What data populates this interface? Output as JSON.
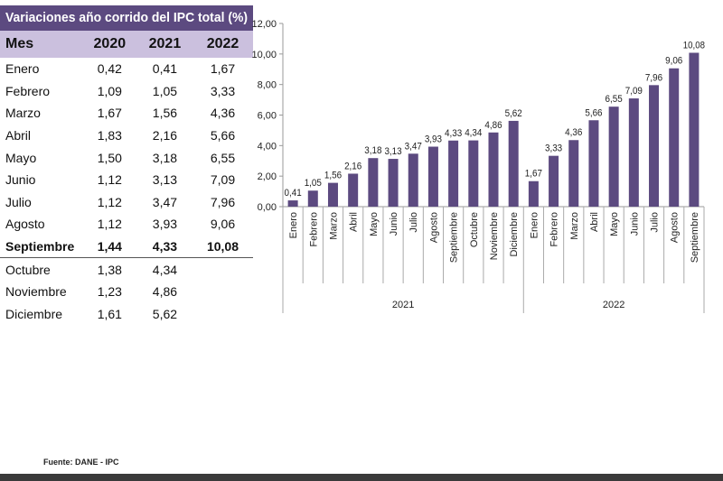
{
  "table": {
    "title": "Variaciones año corrido del IPC total (%)",
    "headers": [
      "Mes",
      "2020",
      "2021",
      "2022"
    ],
    "rows": [
      [
        "Enero",
        "0,42",
        "0,41",
        "1,67"
      ],
      [
        "Febrero",
        "1,09",
        "1,05",
        "3,33"
      ],
      [
        "Marzo",
        "1,67",
        "1,56",
        "4,36"
      ],
      [
        "Abril",
        "1,83",
        "2,16",
        "5,66"
      ],
      [
        "Mayo",
        "1,50",
        "3,18",
        "6,55"
      ],
      [
        "Junio",
        "1,12",
        "3,13",
        "7,09"
      ],
      [
        "Julio",
        "1,12",
        "3,47",
        "7,96"
      ],
      [
        "Agosto",
        "1,12",
        "3,93",
        "9,06"
      ],
      [
        "Septiembre",
        "1,44",
        "4,33",
        "10,08"
      ],
      [
        "Octubre",
        "1,38",
        "4,34",
        ""
      ],
      [
        "Noviembre",
        "1,23",
        "4,86",
        ""
      ],
      [
        "Diciembre",
        "1,61",
        "5,62",
        ""
      ]
    ],
    "highlight_row": "Septiembre",
    "colors": {
      "title_bg": "#5c4a80",
      "header_bg": "#cbc0de"
    }
  },
  "chart_data": {
    "type": "bar",
    "groups": [
      {
        "name": "2021",
        "categories": [
          "Enero",
          "Febrero",
          "Marzo",
          "Abril",
          "Mayo",
          "Junio",
          "Julio",
          "Agosto",
          "Septiembre",
          "Octubre",
          "Noviembre",
          "Diciembre"
        ],
        "values": [
          0.41,
          1.05,
          1.56,
          2.16,
          3.18,
          3.13,
          3.47,
          3.93,
          4.33,
          4.34,
          4.86,
          5.62
        ],
        "labels": [
          "0,41",
          "1,05",
          "1,56",
          "2,16",
          "3,18",
          "3,13",
          "3,47",
          "3,93",
          "4,33",
          "4,34",
          "4,86",
          "5,62"
        ]
      },
      {
        "name": "2022",
        "categories": [
          "Enero",
          "Febrero",
          "Marzo",
          "Abril",
          "Mayo",
          "Junio",
          "Julio",
          "Agosto",
          "Septiembre"
        ],
        "values": [
          1.67,
          3.33,
          4.36,
          5.66,
          6.55,
          7.09,
          7.96,
          9.06,
          10.08
        ],
        "labels": [
          "1,67",
          "3,33",
          "4,36",
          "5,66",
          "6,55",
          "7,09",
          "7,96",
          "9,06",
          "10,08"
        ]
      }
    ],
    "yticks": [
      "0,00",
      "2,00",
      "4,00",
      "6,00",
      "8,00",
      "10,00",
      "12,00"
    ],
    "ylim": [
      0,
      12
    ],
    "grid": false,
    "bar_color": "#5c4a80"
  },
  "footer": {
    "source": "Fuente: DANE - IPC"
  }
}
